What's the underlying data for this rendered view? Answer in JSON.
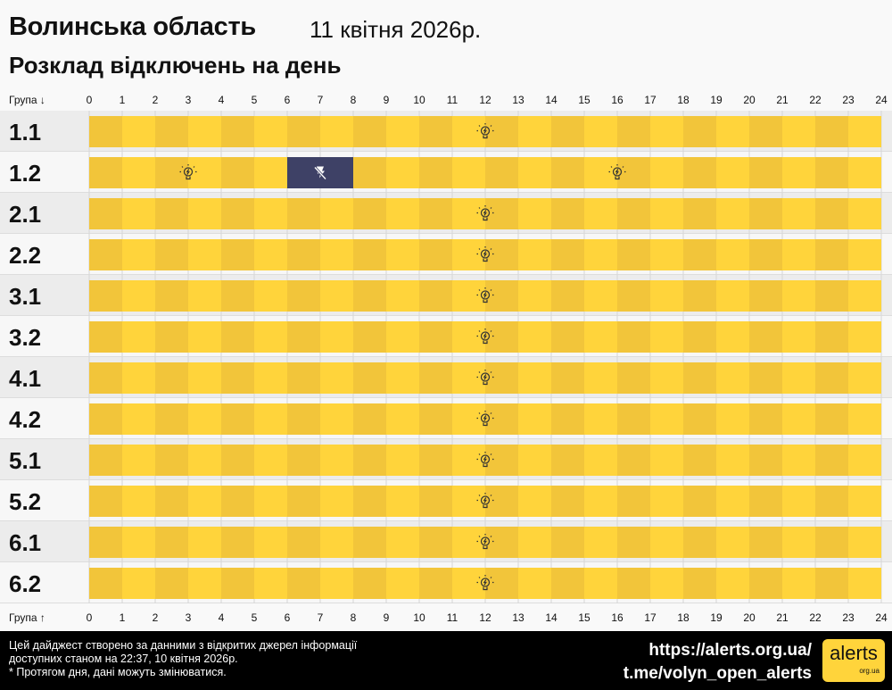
{
  "header": {
    "region": "Волинська область",
    "date": "11 квітня 2026р.",
    "subtitle": "Розклад відключень на день"
  },
  "axis": {
    "top_label": "Група ↓",
    "bottom_label": "Група ↑",
    "ticks": [
      "0",
      "1",
      "2",
      "3",
      "4",
      "5",
      "6",
      "7",
      "8",
      "9",
      "10",
      "11",
      "12",
      "13",
      "14",
      "15",
      "16",
      "17",
      "18",
      "19",
      "20",
      "21",
      "22",
      "23",
      "24"
    ]
  },
  "colors": {
    "power_on_dark": "#f2c53a",
    "power_on_light": "#ffd43b",
    "outage": "#3e4166",
    "row_a": "#ececec",
    "row_b": "#f7f7f7"
  },
  "icons": {
    "power_on": "lightbulb-icon",
    "outage": "no-power-icon"
  },
  "chart_data": {
    "type": "timeline",
    "x_unit": "hour",
    "xlim": [
      0,
      24
    ],
    "groups": [
      {
        "name": "1.1",
        "outages": []
      },
      {
        "name": "1.2",
        "outages": [
          [
            6,
            8
          ]
        ]
      },
      {
        "name": "2.1",
        "outages": []
      },
      {
        "name": "2.2",
        "outages": []
      },
      {
        "name": "3.1",
        "outages": []
      },
      {
        "name": "3.2",
        "outages": []
      },
      {
        "name": "4.1",
        "outages": []
      },
      {
        "name": "4.2",
        "outages": []
      },
      {
        "name": "5.1",
        "outages": []
      },
      {
        "name": "5.2",
        "outages": []
      },
      {
        "name": "6.1",
        "outages": []
      },
      {
        "name": "6.2",
        "outages": []
      }
    ]
  },
  "footer": {
    "note_lines": [
      "Цей дайджест створено за данними з відкритих джерел інформації",
      "доступних станом на 22:37, 10 квітня 2026р.",
      "* Протягом дня, дані можуть змінюватися."
    ],
    "site_link": "https://alerts.org.ua/",
    "telegram_link": "t.me/volyn_open_alerts",
    "logo_text": "alerts",
    "logo_sub": "org.ua"
  }
}
